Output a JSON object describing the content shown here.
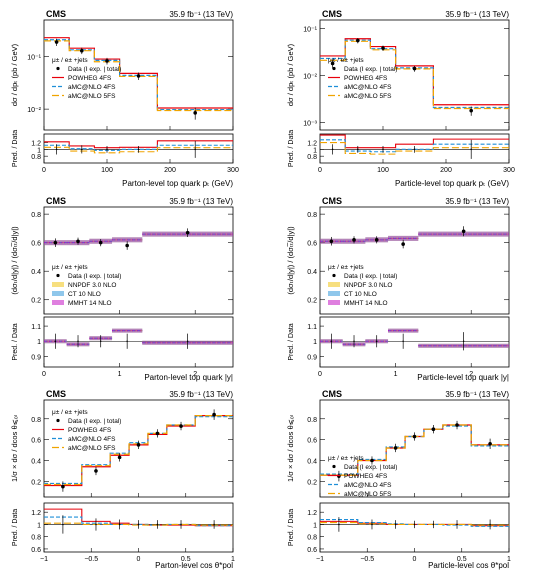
{
  "chart_data": [
    {
      "type": "step",
      "panel": "top-left",
      "cms": "CMS",
      "lumi": "35.9 fb⁻¹ (13 TeV)",
      "ylabel": "dσ / dpₜ (pb / GeV)",
      "ratio_ylabel": "Pred. / Data",
      "xlabel": "Parton-level top quark pₜ (GeV)",
      "yscale": "log",
      "ylim": [
        0.004,
        0.5
      ],
      "yticks": [
        {
          "v": 0.01,
          "t": "10⁻²"
        },
        {
          "v": 0.1,
          "t": "10⁻¹"
        }
      ],
      "xlim": [
        0,
        300
      ],
      "xticks": [
        0,
        100,
        200,
        300
      ],
      "ratio_ylim": [
        0.6,
        1.45
      ],
      "ratio_yticks": [
        0.8,
        1,
        1.2
      ],
      "edges": [
        0,
        40,
        80,
        120,
        180,
        300
      ],
      "data": {
        "x": [
          20,
          60,
          100,
          150,
          240
        ],
        "y": [
          0.19,
          0.13,
          0.083,
          0.043,
          0.0085
        ],
        "err": [
          0.03,
          0.018,
          0.012,
          0.007,
          0.0022
        ]
      },
      "series": [
        {
          "name": "POWHEG 4FS",
          "style": "solid",
          "color": "#e8000b",
          "values": [
            0.23,
            0.145,
            0.09,
            0.048,
            0.0105
          ],
          "ratio": [
            1.22,
            1.1,
            1.05,
            1.06,
            1.25
          ]
        },
        {
          "name": "aMC@NLO 4FS",
          "style": "dash",
          "color": "#1f8fd8",
          "values": [
            0.21,
            0.135,
            0.085,
            0.044,
            0.0098
          ],
          "ratio": [
            1.12,
            1.02,
            0.97,
            1.0,
            1.12
          ]
        },
        {
          "name": "aMC@NLO 5FS",
          "style": "longdash",
          "color": "#f0a400",
          "values": [
            0.2,
            0.13,
            0.08,
            0.042,
            0.0094
          ],
          "ratio": [
            1.06,
            0.95,
            0.9,
            0.93,
            1.05
          ]
        }
      ],
      "ratio_points": {
        "x": [
          20,
          60,
          100,
          150,
          240
        ],
        "err": [
          0.15,
          0.12,
          0.1,
          0.1,
          0.25
        ]
      },
      "legend": {
        "header": "μ± / e± +jets",
        "data_label": "Data (Ⅰ exp. | total)"
      }
    },
    {
      "type": "step",
      "panel": "top-right",
      "cms": "CMS",
      "lumi": "35.9 fb⁻¹ (13 TeV)",
      "ylabel": "dσ / dpₜ (pb / GeV)",
      "ratio_ylabel": "Pred. / Data",
      "xlabel": "Particle-level top quark pₜ (GeV)",
      "yscale": "log",
      "ylim": [
        0.0007,
        0.15
      ],
      "yticks": [
        {
          "v": 0.001,
          "t": "10⁻³"
        },
        {
          "v": 0.01,
          "t": "10⁻²"
        },
        {
          "v": 0.1,
          "t": "10⁻¹"
        }
      ],
      "xlim": [
        0,
        300
      ],
      "xticks": [
        0,
        100,
        200,
        300
      ],
      "ratio_ylim": [
        0.6,
        1.45
      ],
      "ratio_yticks": [
        0.8,
        1,
        1.2
      ],
      "edges": [
        0,
        40,
        80,
        120,
        180,
        300
      ],
      "data": {
        "x": [
          20,
          60,
          100,
          150,
          240
        ],
        "y": [
          0.018,
          0.055,
          0.038,
          0.014,
          0.0018
        ],
        "err": [
          0.004,
          0.007,
          0.005,
          0.002,
          0.0004
        ]
      },
      "series": [
        {
          "name": "POWHEG 4FS",
          "style": "solid",
          "color": "#e8000b",
          "values": [
            0.026,
            0.06,
            0.041,
            0.016,
            0.0024
          ],
          "ratio": [
            1.42,
            1.05,
            1.05,
            1.15,
            1.3
          ]
        },
        {
          "name": "aMC@NLO 4FS",
          "style": "dash",
          "color": "#1f8fd8",
          "values": [
            0.023,
            0.056,
            0.037,
            0.0145,
            0.0021
          ],
          "ratio": [
            1.28,
            0.95,
            0.93,
            1.0,
            1.15
          ]
        },
        {
          "name": "aMC@NLO 5FS",
          "style": "longdash",
          "color": "#f0a400",
          "values": [
            0.021,
            0.053,
            0.035,
            0.0138,
            0.002
          ],
          "ratio": [
            1.2,
            0.88,
            0.86,
            0.95,
            1.05
          ]
        }
      ],
      "ratio_points": {
        "x": [
          20,
          60,
          100,
          150,
          240
        ],
        "err": [
          0.15,
          0.1,
          0.1,
          0.1,
          0.28
        ]
      },
      "legend": {
        "header": "μ± / e± +jets",
        "data_label": "Data (Ⅰ exp. | total)"
      }
    },
    {
      "type": "bands",
      "panel": "middle-left",
      "cms": "CMS",
      "lumi": "35.9 fb⁻¹ (13 TeV)",
      "ylabel": "(dσₜ/d|y|) / (dσₜₜ̅/d|y|)",
      "ratio_ylabel": "Pred. / Data",
      "xlabel": "Parton-level top quark |y|",
      "yscale": "linear",
      "ylim": [
        0.1,
        0.85
      ],
      "yticks": [
        {
          "v": 0.2,
          "t": "0.2"
        },
        {
          "v": 0.4,
          "t": "0.4"
        },
        {
          "v": 0.6,
          "t": "0.6"
        },
        {
          "v": 0.8,
          "t": "0.8"
        }
      ],
      "xlim": [
        0,
        2.5
      ],
      "xticks": [
        0,
        1,
        2
      ],
      "ratio_ylim": [
        0.83,
        1.16
      ],
      "ratio_yticks": [
        0.9,
        1,
        1.1
      ],
      "edges": [
        0,
        0.3,
        0.6,
        0.9,
        1.3,
        2.5
      ],
      "data": {
        "x": [
          0.15,
          0.45,
          0.75,
          1.1,
          1.9
        ],
        "y": [
          0.6,
          0.61,
          0.6,
          0.58,
          0.67
        ],
        "err": [
          0.03,
          0.025,
          0.025,
          0.03,
          0.03
        ]
      },
      "series": [
        {
          "name": "NNPDF 3.0 NLO",
          "style": "band",
          "color": "#f0c000",
          "values": [
            0.6,
            0.6,
            0.61,
            0.62,
            0.66
          ],
          "ratio": [
            1.0,
            0.98,
            1.02,
            1.07,
            0.99
          ]
        },
        {
          "name": "CT 10 NLO",
          "style": "band-dash",
          "color": "#1f8fd8",
          "values": [
            0.6,
            0.6,
            0.61,
            0.62,
            0.66
          ],
          "ratio": [
            1.0,
            0.98,
            1.02,
            1.07,
            0.99
          ]
        },
        {
          "name": "MMHT 14 NLO",
          "style": "band-dot",
          "color": "#c000c0",
          "values": [
            0.6,
            0.6,
            0.61,
            0.62,
            0.66
          ],
          "ratio": [
            1.0,
            0.98,
            1.02,
            1.07,
            0.99
          ]
        }
      ],
      "ratio_points": {
        "x": [
          0.15,
          0.45,
          0.75,
          1.1,
          1.9
        ],
        "err": [
          0.05,
          0.04,
          0.04,
          0.05,
          0.05
        ]
      },
      "legend": {
        "header": "μ± / e± +jets",
        "data_label": "Data (Ⅰ exp. | total)"
      }
    },
    {
      "type": "bands",
      "panel": "middle-right",
      "cms": "CMS",
      "lumi": "35.9 fb⁻¹ (13 TeV)",
      "ylabel": "(dσₜ/d|y|) / (dσₜₜ̅/d|y|)",
      "ratio_ylabel": "Pred. / Data",
      "xlabel": "Particle-level top quark |y|",
      "yscale": "linear",
      "ylim": [
        0.1,
        0.85
      ],
      "yticks": [
        {
          "v": 0.2,
          "t": "0.2"
        },
        {
          "v": 0.4,
          "t": "0.4"
        },
        {
          "v": 0.6,
          "t": "0.6"
        },
        {
          "v": 0.8,
          "t": "0.8"
        }
      ],
      "xlim": [
        0,
        2.5
      ],
      "xticks": [
        0,
        1,
        2
      ],
      "ratio_ylim": [
        0.83,
        1.16
      ],
      "ratio_yticks": [
        0.9,
        1,
        1.1
      ],
      "edges": [
        0,
        0.3,
        0.6,
        0.9,
        1.3,
        2.5
      ],
      "data": {
        "x": [
          0.15,
          0.45,
          0.75,
          1.1,
          1.9
        ],
        "y": [
          0.61,
          0.62,
          0.62,
          0.59,
          0.68
        ],
        "err": [
          0.03,
          0.025,
          0.025,
          0.03,
          0.035
        ]
      },
      "series": [
        {
          "name": "NNPDF 3.0 NLO",
          "style": "band",
          "color": "#f0c000",
          "values": [
            0.61,
            0.61,
            0.62,
            0.63,
            0.66
          ],
          "ratio": [
            1.0,
            0.98,
            1.0,
            1.07,
            0.97
          ]
        },
        {
          "name": "CT 10 NLO",
          "style": "band-dash",
          "color": "#1f8fd8",
          "values": [
            0.61,
            0.61,
            0.62,
            0.63,
            0.66
          ],
          "ratio": [
            1.0,
            0.98,
            1.0,
            1.07,
            0.97
          ]
        },
        {
          "name": "MMHT 14 NLO",
          "style": "band-dot",
          "color": "#c000c0",
          "values": [
            0.61,
            0.61,
            0.62,
            0.63,
            0.66
          ],
          "ratio": [
            1.0,
            0.98,
            1.0,
            1.07,
            0.97
          ]
        }
      ],
      "ratio_points": {
        "x": [
          0.15,
          0.45,
          0.75,
          1.1,
          1.9
        ],
        "err": [
          0.05,
          0.04,
          0.04,
          0.05,
          0.06
        ]
      },
      "legend": {
        "header": "μ± / e± +jets",
        "data_label": "Data (Ⅰ exp. | total)"
      }
    },
    {
      "type": "step",
      "panel": "bottom-left",
      "cms": "CMS",
      "lumi": "35.9 fb⁻¹ (13 TeV)",
      "ylabel": "1/σ × dσ / dcos θ⩽ₒₗ",
      "ratio_ylabel": "Pred. / Data",
      "xlabel": "Parton-level cos θ*pol",
      "yscale": "linear",
      "ylim": [
        0.05,
        0.98
      ],
      "yticks": [
        {
          "v": 0.2,
          "t": "0.2"
        },
        {
          "v": 0.4,
          "t": "0.4"
        },
        {
          "v": 0.6,
          "t": "0.6"
        },
        {
          "v": 0.8,
          "t": "0.8"
        }
      ],
      "xlim": [
        -1,
        1
      ],
      "xticks": [
        -1,
        -0.5,
        0,
        0.5,
        1
      ],
      "ratio_ylim": [
        0.55,
        1.35
      ],
      "ratio_yticks": [
        0.6,
        0.8,
        1,
        1.2
      ],
      "edges": [
        -1,
        -0.6,
        -0.3,
        -0.1,
        0.1,
        0.3,
        0.6,
        1
      ],
      "data": {
        "x": [
          -0.8,
          -0.45,
          -0.2,
          0.0,
          0.2,
          0.45,
          0.8
        ],
        "y": [
          0.15,
          0.3,
          0.43,
          0.55,
          0.66,
          0.73,
          0.84
        ],
        "err": [
          0.05,
          0.04,
          0.04,
          0.04,
          0.04,
          0.04,
          0.05
        ]
      },
      "series": [
        {
          "name": "POWHEG 4FS",
          "style": "solid",
          "color": "#e8000b",
          "values": [
            0.16,
            0.34,
            0.45,
            0.55,
            0.65,
            0.73,
            0.83
          ],
          "ratio": [
            1.25,
            1.05,
            1.02,
            1.0,
            0.99,
            0.99,
            0.98
          ]
        },
        {
          "name": "aMC@NLO 4FS",
          "style": "dash",
          "color": "#1f8fd8",
          "values": [
            0.18,
            0.36,
            0.47,
            0.57,
            0.66,
            0.74,
            0.82
          ],
          "ratio": [
            1.12,
            1.02,
            1.0,
            1.0,
            0.99,
            1.0,
            0.98
          ]
        },
        {
          "name": "aMC@NLO 5FS",
          "style": "longdash",
          "color": "#f0a400",
          "values": [
            0.17,
            0.35,
            0.46,
            0.56,
            0.66,
            0.74,
            0.83
          ],
          "ratio": [
            1.02,
            1.0,
            1.0,
            0.99,
            0.99,
            1.0,
            0.99
          ]
        }
      ],
      "ratio_points": {
        "x": [
          -0.8,
          -0.45,
          -0.2,
          0.0,
          0.2,
          0.45,
          0.8
        ],
        "err": [
          0.15,
          0.1,
          0.08,
          0.07,
          0.07,
          0.07,
          0.07
        ]
      },
      "legend": {
        "header": "μ± / e± +jets",
        "data_label": "Data (Ⅰ exp. | total)"
      }
    },
    {
      "type": "step",
      "panel": "bottom-right",
      "cms": "CMS",
      "lumi": "35.9 fb⁻¹ (13 TeV)",
      "ylabel": "1/σ × dσ / dcos θ⩽ₒₗ",
      "ratio_ylabel": "Pred. / Data",
      "xlabel": "Particle-level cos θ*pol",
      "yscale": "linear",
      "ylim": [
        0.05,
        0.98
      ],
      "yticks": [
        {
          "v": 0.2,
          "t": "0.2"
        },
        {
          "v": 0.4,
          "t": "0.4"
        },
        {
          "v": 0.6,
          "t": "0.6"
        },
        {
          "v": 0.8,
          "t": "0.8"
        }
      ],
      "xlim": [
        -1,
        1
      ],
      "xticks": [
        -1,
        -0.5,
        0,
        0.5,
        1
      ],
      "ratio_ylim": [
        0.55,
        1.35
      ],
      "ratio_yticks": [
        0.6,
        0.8,
        1,
        1.2
      ],
      "edges": [
        -1,
        -0.6,
        -0.3,
        -0.1,
        0.1,
        0.3,
        0.6,
        1
      ],
      "data": {
        "x": [
          -0.8,
          -0.45,
          -0.2,
          0.0,
          0.2,
          0.45,
          0.8
        ],
        "y": [
          0.25,
          0.4,
          0.52,
          0.63,
          0.7,
          0.74,
          0.56
        ],
        "err": [
          0.05,
          0.04,
          0.04,
          0.04,
          0.04,
          0.04,
          0.05
        ]
      },
      "series": [
        {
          "name": "POWHEG 4FS",
          "style": "solid",
          "color": "#e8000b",
          "values": [
            0.26,
            0.4,
            0.52,
            0.63,
            0.7,
            0.74,
            0.55
          ],
          "ratio": [
            1.05,
            1.02,
            1.0,
            1.0,
            1.0,
            1.0,
            0.98
          ]
        },
        {
          "name": "aMC@NLO 4FS",
          "style": "dash",
          "color": "#1f8fd8",
          "values": [
            0.27,
            0.41,
            0.53,
            0.63,
            0.7,
            0.73,
            0.54
          ],
          "ratio": [
            1.08,
            1.03,
            1.01,
            1.0,
            1.0,
            0.99,
            0.97
          ]
        },
        {
          "name": "aMC@NLO 5FS",
          "style": "longdash",
          "color": "#f0a400",
          "values": [
            0.26,
            0.4,
            0.52,
            0.63,
            0.7,
            0.74,
            0.55
          ],
          "ratio": [
            1.03,
            1.01,
            1.0,
            1.0,
            1.0,
            1.0,
            0.99
          ]
        }
      ],
      "ratio_points": {
        "x": [
          -0.8,
          -0.45,
          -0.2,
          0.0,
          0.2,
          0.45,
          0.8
        ],
        "err": [
          0.12,
          0.08,
          0.07,
          0.06,
          0.06,
          0.07,
          0.08
        ]
      },
      "legend": {
        "header": "μ± / e± +jets",
        "data_label": "Data (Ⅰ exp. | total)"
      }
    }
  ]
}
